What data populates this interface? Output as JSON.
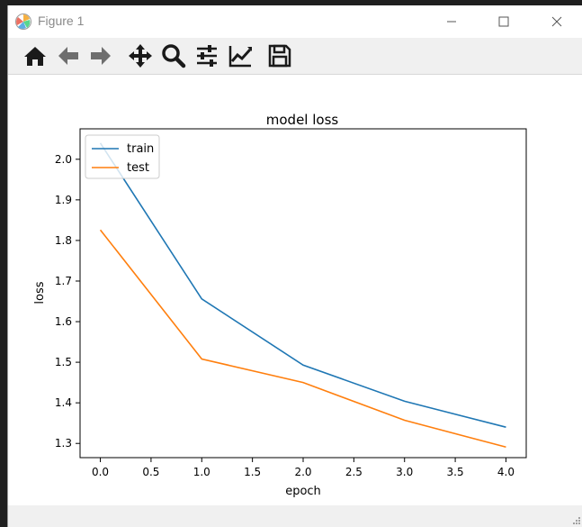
{
  "window": {
    "title": "Figure 1"
  },
  "toolbar": {
    "items": [
      {
        "name": "home-icon"
      },
      {
        "name": "back-icon"
      },
      {
        "name": "forward-icon"
      },
      {
        "name": "pan-icon"
      },
      {
        "name": "zoom-icon"
      },
      {
        "name": "configure-subplots-icon"
      },
      {
        "name": "edit-axis-icon"
      },
      {
        "name": "save-icon"
      }
    ]
  },
  "chart_data": {
    "type": "line",
    "title": "model loss",
    "xlabel": "epoch",
    "ylabel": "loss",
    "x": [
      0,
      1,
      2,
      3,
      4
    ],
    "xlim": [
      -0.2,
      4.2
    ],
    "ylim": [
      1.265,
      2.075
    ],
    "xticks": [
      "0.0",
      "0.5",
      "1.0",
      "1.5",
      "2.0",
      "2.5",
      "3.0",
      "3.5",
      "4.0"
    ],
    "yticks": [
      "1.3",
      "1.4",
      "1.5",
      "1.6",
      "1.7",
      "1.8",
      "1.9",
      "2.0"
    ],
    "series": [
      {
        "name": "train",
        "color": "#1f77b4",
        "values": [
          2.04,
          1.656,
          1.493,
          1.404,
          1.34
        ]
      },
      {
        "name": "test",
        "color": "#ff7f0e",
        "values": [
          1.826,
          1.508,
          1.45,
          1.357,
          1.291
        ]
      }
    ],
    "legend": "upper left",
    "grid": false
  }
}
